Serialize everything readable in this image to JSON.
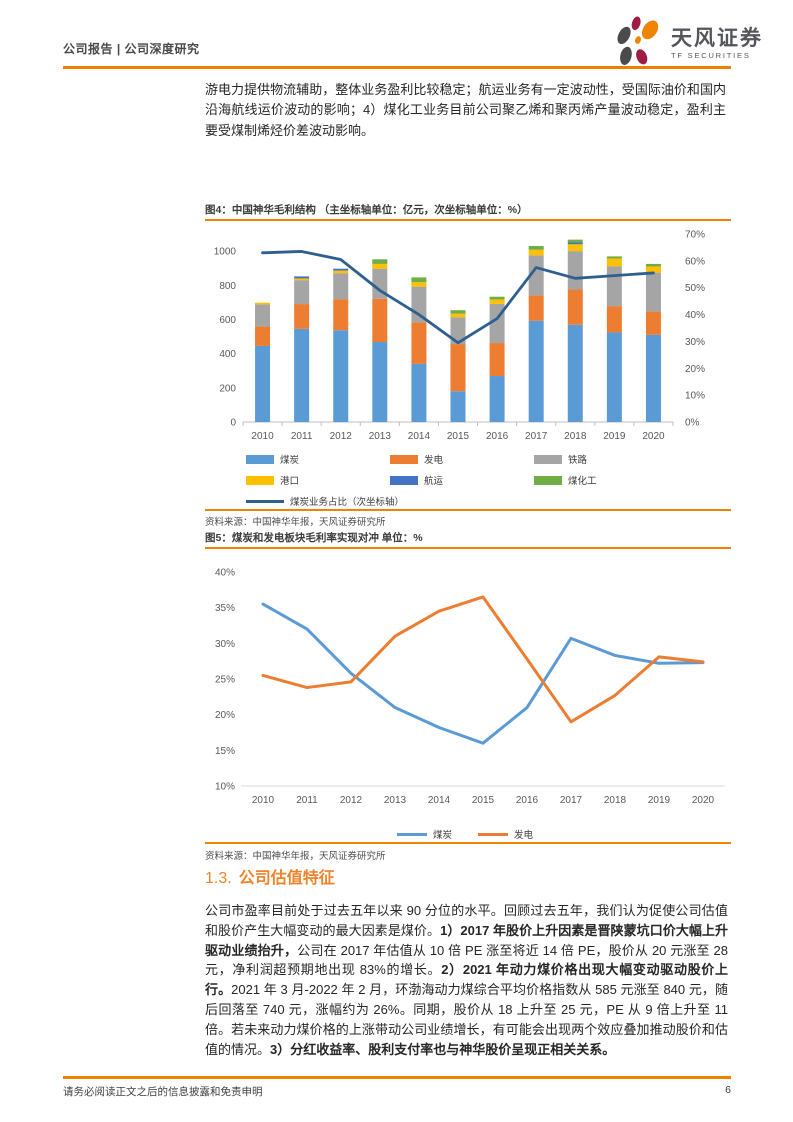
{
  "header": {
    "breadcrumb": "公司报告 | 公司深度研究",
    "brand_cn": "天风证券",
    "brand_en": "TF SECURITIES"
  },
  "intro_paragraph": "游电力提供物流辅助，整体业务盈利比较稳定；航运业务有一定波动性，受国际油价和国内沿海航线运价波动的影响；4）煤化工业务目前公司聚乙烯和聚丙烯产量波动稳定，盈利主要受煤制烯烃价差波动影响。",
  "figure4": {
    "title": "图4：中国神华毛利结构 （主坐标轴单位：亿元，次坐标轴单位：%）",
    "source": "资料来源：中国神华年报，天风证券研究所"
  },
  "figure5": {
    "title": "图5：煤炭和发电板块毛利率实现对冲 单位：%",
    "source": "资料来源：中国神华年报，天风证券研究所"
  },
  "section": {
    "number": "1.3.",
    "title": "公司估值特征"
  },
  "valuation_paragraph_segments": [
    {
      "text": "公司市盈率目前处于过去五年以来 90 分位的水平。回顾过去五年，我们认为促使公司估值和股价产生大幅变动的最大因素是煤价。",
      "bold": false
    },
    {
      "text": "1）2017 年股价上升因素是晋陕蒙坑口价大幅上升驱动业绩抬升，",
      "bold": true
    },
    {
      "text": "公司在 2017 年估值从 10 倍 PE 涨至将近 14 倍 PE，股价从 20 元涨至 28 元，净利润超预期地出现 83%的增长。",
      "bold": false
    },
    {
      "text": "2）2021 年动力煤价格出现大幅变动驱动股价上行。",
      "bold": true
    },
    {
      "text": "2021 年 3 月-2022 年 2 月，环渤海动力煤综合平均价格指数从 585 元涨至 840 元，随后回落至 740 元，涨幅约为 26%。同期，股价从 18 上升至 25 元，PE 从 9 倍上升至 11 倍。若未来动力煤价格的上涨带动公司业绩增长，有可能会出现两个效应叠加推动股价和估值的情况。",
      "bold": false
    },
    {
      "text": "3）分红收益率、股利支付率也与神华股价呈现正相关关系。",
      "bold": true
    }
  ],
  "footer": {
    "disclaimer": "请务必阅读正文之后的信息披露和免责申明",
    "page_number": "6"
  },
  "colors": {
    "accent_orange": "#ee7f01",
    "title_rule_orange": "#f08300",
    "bar_blue": "#5b9bd5",
    "bar_orange": "#ed7d31",
    "bar_gray": "#a5a5a5",
    "bar_yellow": "#ffc000",
    "bar_darkblue": "#4472c4",
    "bar_green": "#70ad47",
    "line_steelblue": "#2e5f8f",
    "axis_text": "#595959",
    "axis_line": "#bfbfbf"
  },
  "chart_data": [
    {
      "type": "bar",
      "subtype": "stacked-bars-with-secondary-line",
      "title": "中国神华毛利结构",
      "primary_axis_unit": "亿元",
      "secondary_axis_unit": "%",
      "categories": [
        "2010",
        "2011",
        "2012",
        "2013",
        "2014",
        "2015",
        "2016",
        "2017",
        "2018",
        "2019",
        "2020"
      ],
      "series": [
        {
          "name": "煤炭",
          "color": "#5b9bd5",
          "values": [
            445,
            545,
            537,
            468,
            340,
            180,
            269,
            593,
            569,
            524,
            510
          ]
        },
        {
          "name": "发电",
          "color": "#ed7d31",
          "values": [
            115,
            145,
            182,
            253,
            243,
            276,
            193,
            148,
            206,
            154,
            136
          ]
        },
        {
          "name": "铁路",
          "color": "#a5a5a5",
          "values": [
            128,
            140,
            152,
            176,
            209,
            157,
            230,
            234,
            225,
            233,
            228
          ]
        },
        {
          "name": "港口",
          "color": "#ffc000",
          "values": [
            10,
            10,
            15,
            28,
            26,
            21,
            25,
            33,
            40,
            46,
            36
          ]
        },
        {
          "name": "航运",
          "color": "#4472c4",
          "values": [
            0,
            12,
            11,
            0,
            0,
            0,
            0,
            0,
            10,
            0,
            0
          ]
        },
        {
          "name": "煤化工",
          "color": "#70ad47",
          "values": [
            0,
            0,
            0,
            27,
            28,
            20,
            16,
            22,
            17,
            12,
            15
          ]
        }
      ],
      "line_series": {
        "name": "煤炭业务占比（次坐标轴）",
        "color": "#2e5f8f",
        "values": [
          63,
          63.5,
          60.5,
          49,
          40,
          29.5,
          38.5,
          57.5,
          53.5,
          54.5,
          55.5
        ]
      },
      "left_axis": {
        "min": 0,
        "max": 1100,
        "ticks": [
          0,
          200,
          400,
          600,
          800,
          1000
        ]
      },
      "right_axis": {
        "min": 0,
        "max": 70,
        "ticks": [
          "0%",
          "10%",
          "20%",
          "30%",
          "40%",
          "50%",
          "60%",
          "70%"
        ]
      },
      "grid": false,
      "legend_position": "bottom"
    },
    {
      "type": "line",
      "title": "煤炭和发电板块毛利率实现对冲",
      "unit": "%",
      "x": [
        "2010",
        "2011",
        "2012",
        "2013",
        "2014",
        "2015",
        "2016",
        "2017",
        "2018",
        "2019",
        "2020"
      ],
      "series": [
        {
          "name": "煤炭",
          "color": "#5b9bd5",
          "values": [
            35.5,
            32.0,
            25.8,
            21.0,
            18.2,
            16.0,
            21.0,
            30.7,
            28.3,
            27.2,
            27.3
          ]
        },
        {
          "name": "发电",
          "color": "#ed7d31",
          "values": [
            25.5,
            23.8,
            24.6,
            31.0,
            34.5,
            36.5,
            27.8,
            19.0,
            22.7,
            28.1,
            27.4
          ]
        }
      ],
      "y_axis": {
        "min": 10,
        "max": 40,
        "ticks": [
          "10%",
          "15%",
          "20%",
          "25%",
          "30%",
          "35%",
          "40%"
        ]
      },
      "grid": false,
      "legend_position": "bottom"
    }
  ]
}
